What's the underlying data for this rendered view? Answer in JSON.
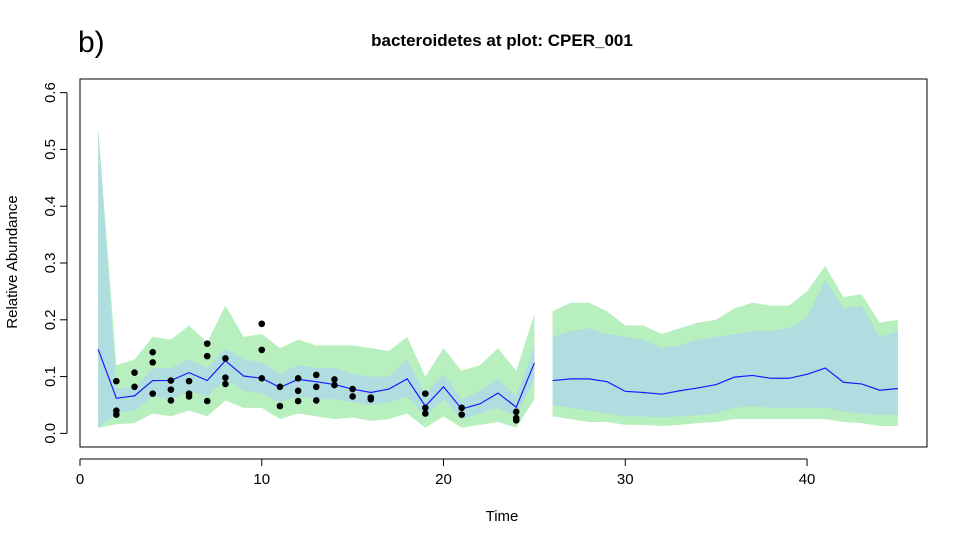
{
  "panel_label": "b)",
  "chart_data": {
    "type": "line",
    "title": "bacteroidetes at plot: CPER_001",
    "xlabel": "Time",
    "ylabel": "Relative Abundance",
    "xlim": [
      0,
      46.6
    ],
    "ylim": [
      -0.024,
      0.624
    ],
    "xticks": [
      0,
      10,
      20,
      30,
      40
    ],
    "yticks": [
      0.0,
      0.1,
      0.2,
      0.3,
      0.4,
      0.5,
      0.6
    ],
    "ytick_labels": [
      "0.0",
      "0.1",
      "0.2",
      "0.3",
      "0.4",
      "0.5",
      "0.6"
    ],
    "grid": false,
    "legend": "none",
    "colors": {
      "outer_band": "#b7f0be",
      "inner_band": "#b0dde0",
      "mean_line": "#1a1aff",
      "points": "#000000",
      "axes": "#000000"
    },
    "segments": [
      {
        "x": [
          1,
          2,
          3,
          4,
          5,
          6,
          7,
          8,
          9,
          10,
          11,
          12,
          13,
          14,
          15,
          16,
          17,
          18,
          19,
          20,
          21,
          22,
          23,
          24,
          25
        ],
        "mean": [
          0.148,
          0.062,
          0.066,
          0.093,
          0.093,
          0.107,
          0.093,
          0.128,
          0.101,
          0.097,
          0.081,
          0.095,
          0.091,
          0.086,
          0.078,
          0.072,
          0.078,
          0.096,
          0.048,
          0.082,
          0.043,
          0.052,
          0.071,
          0.046,
          0.124
        ],
        "lo95": [
          0.01,
          0.016,
          0.018,
          0.035,
          0.03,
          0.04,
          0.03,
          0.058,
          0.045,
          0.045,
          0.025,
          0.035,
          0.03,
          0.025,
          0.028,
          0.022,
          0.025,
          0.035,
          0.01,
          0.03,
          0.01,
          0.015,
          0.02,
          0.01,
          0.06
        ],
        "hi95": [
          0.537,
          0.12,
          0.13,
          0.17,
          0.165,
          0.19,
          0.16,
          0.225,
          0.17,
          0.175,
          0.15,
          0.165,
          0.155,
          0.155,
          0.155,
          0.15,
          0.145,
          0.17,
          0.1,
          0.15,
          0.11,
          0.12,
          0.15,
          0.11,
          0.21
        ],
        "lo50": [
          0.01,
          0.035,
          0.04,
          0.065,
          0.06,
          0.075,
          0.065,
          0.095,
          0.075,
          0.07,
          0.055,
          0.065,
          0.06,
          0.06,
          0.055,
          0.05,
          0.055,
          0.065,
          0.03,
          0.06,
          0.025,
          0.035,
          0.045,
          0.03,
          0.095
        ],
        "hi50": [
          0.537,
          0.08,
          0.08,
          0.115,
          0.115,
          0.13,
          0.115,
          0.15,
          0.13,
          0.125,
          0.105,
          0.12,
          0.115,
          0.115,
          0.105,
          0.1,
          0.1,
          0.13,
          0.07,
          0.105,
          0.06,
          0.075,
          0.095,
          0.065,
          0.155
        ]
      },
      {
        "x": [
          26,
          27,
          28,
          29,
          30,
          31,
          32,
          33,
          34,
          35,
          36,
          37,
          38,
          39,
          40,
          41,
          42,
          43,
          44,
          45
        ],
        "mean": [
          0.093,
          0.096,
          0.096,
          0.091,
          0.074,
          0.072,
          0.069,
          0.075,
          0.08,
          0.086,
          0.099,
          0.102,
          0.097,
          0.097,
          0.104,
          0.115,
          0.09,
          0.087,
          0.076,
          0.079
        ],
        "lo95": [
          0.03,
          0.025,
          0.02,
          0.02,
          0.015,
          0.015,
          0.013,
          0.015,
          0.018,
          0.02,
          0.025,
          0.025,
          0.025,
          0.025,
          0.025,
          0.025,
          0.02,
          0.018,
          0.013,
          0.013
        ],
        "hi95": [
          0.215,
          0.23,
          0.23,
          0.215,
          0.19,
          0.19,
          0.175,
          0.185,
          0.195,
          0.2,
          0.22,
          0.23,
          0.225,
          0.225,
          0.25,
          0.295,
          0.24,
          0.245,
          0.195,
          0.2
        ],
        "lo50": [
          0.05,
          0.045,
          0.04,
          0.035,
          0.03,
          0.03,
          0.028,
          0.03,
          0.032,
          0.035,
          0.045,
          0.048,
          0.045,
          0.045,
          0.045,
          0.045,
          0.038,
          0.035,
          0.032,
          0.033
        ],
        "hi50": [
          0.17,
          0.18,
          0.185,
          0.175,
          0.17,
          0.165,
          0.15,
          0.155,
          0.165,
          0.17,
          0.175,
          0.18,
          0.18,
          0.185,
          0.205,
          0.27,
          0.22,
          0.225,
          0.17,
          0.18
        ]
      }
    ],
    "points": {
      "x": [
        2,
        2,
        2,
        3,
        3,
        4,
        4,
        4,
        5,
        5,
        5,
        6,
        6,
        6,
        7,
        7,
        7,
        8,
        8,
        8,
        10,
        10,
        10,
        11,
        11,
        12,
        12,
        12,
        13,
        13,
        13,
        14,
        14,
        15,
        15,
        16,
        16,
        19,
        19,
        19,
        21,
        21,
        24,
        24,
        24
      ],
      "y": [
        0.092,
        0.04,
        0.033,
        0.107,
        0.082,
        0.143,
        0.125,
        0.07,
        0.093,
        0.077,
        0.058,
        0.092,
        0.07,
        0.065,
        0.158,
        0.136,
        0.057,
        0.132,
        0.098,
        0.087,
        0.193,
        0.147,
        0.097,
        0.082,
        0.048,
        0.097,
        0.075,
        0.057,
        0.103,
        0.082,
        0.058,
        0.095,
        0.085,
        0.078,
        0.065,
        0.063,
        0.06,
        0.07,
        0.045,
        0.035,
        0.045,
        0.033,
        0.038,
        0.027,
        0.023
      ]
    }
  }
}
